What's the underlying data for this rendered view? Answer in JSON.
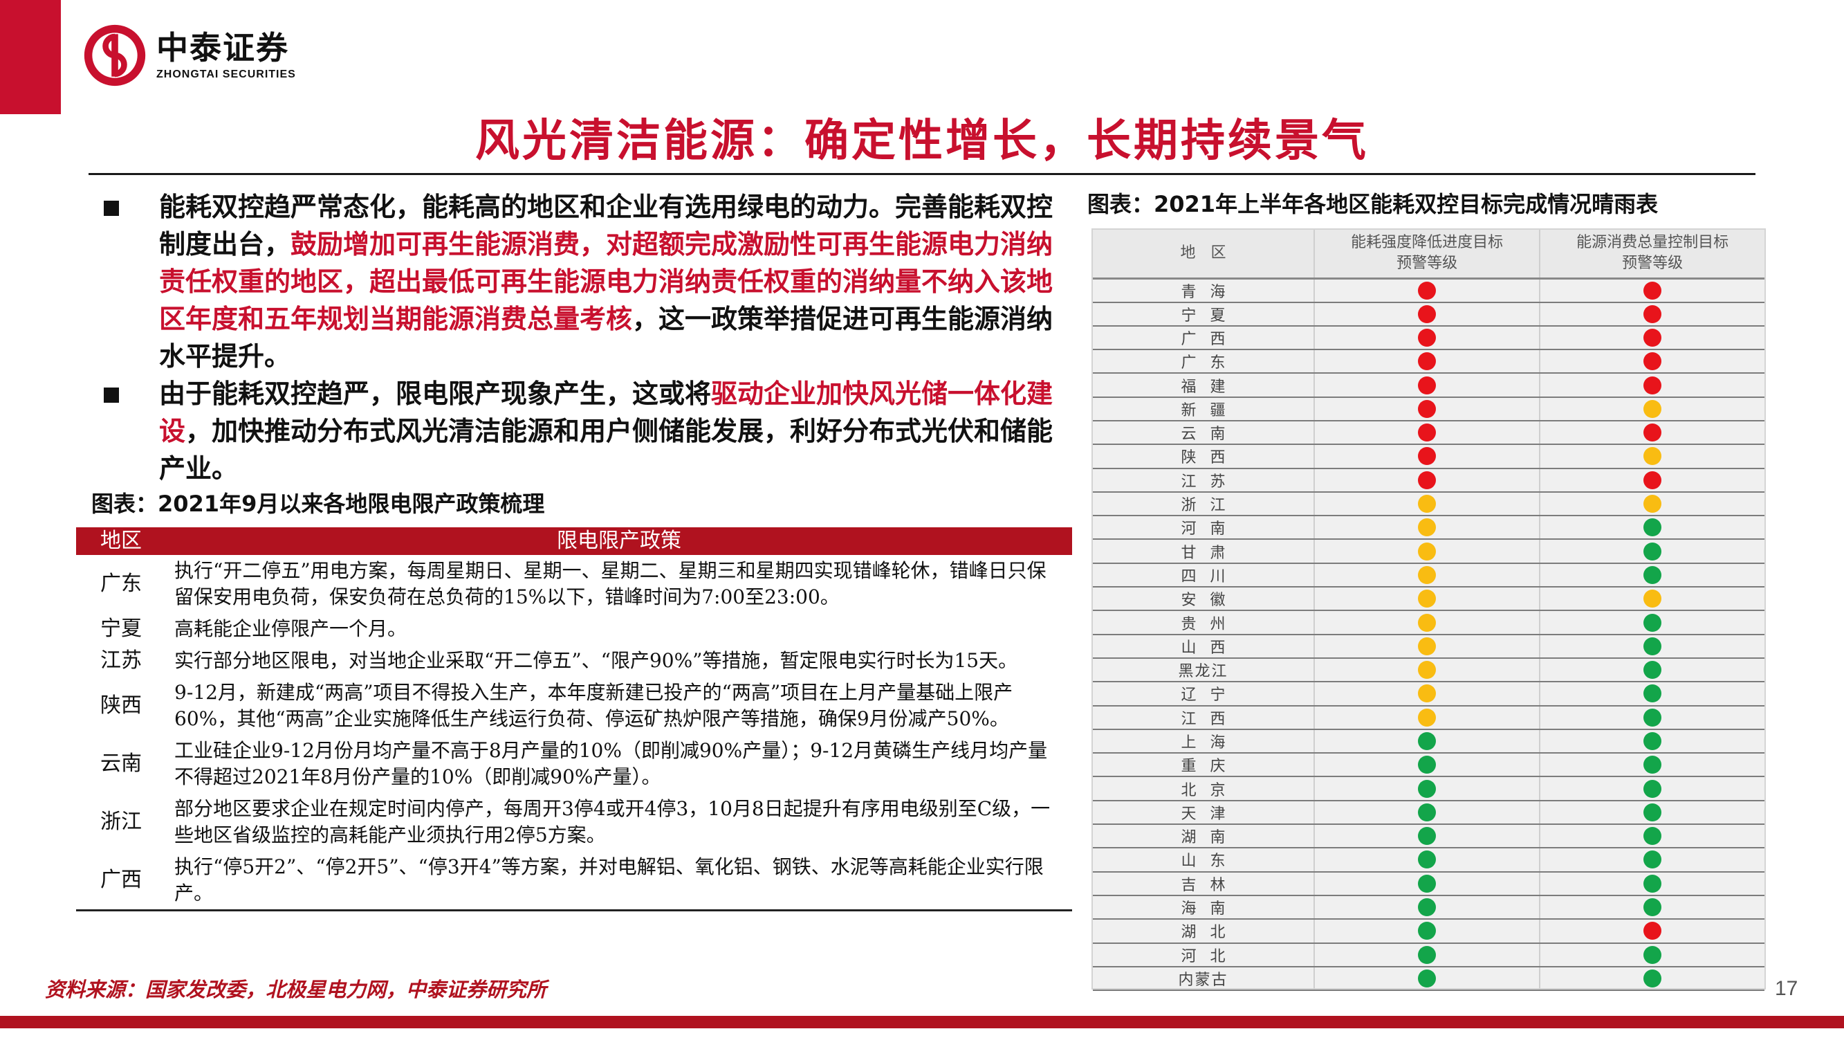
{
  "header": {
    "logo_cn": "中泰证券",
    "logo_en": "ZHONGTAI SECURITIES",
    "brand_color": "#c8102e"
  },
  "title": "风光清洁能源：确定性增长，长期持续景气",
  "bullets": [
    {
      "segments": [
        {
          "text": "能耗双控趋严常态化，能耗高的地区和企业有选用绿电的动力。完善能耗双控制度出台，",
          "highlight": false
        },
        {
          "text": "鼓励增加可再生能源消费，对超额完成激励性可再生能源电力消纳责任权重的地区，超出最低可再生能源电力消纳责任权重的消纳量不纳入该地区年度和五年规划当期能源消费总量考核",
          "highlight": true
        },
        {
          "text": "，这一政策举措促进可再生能源消纳水平提升。",
          "highlight": false
        }
      ]
    },
    {
      "segments": [
        {
          "text": "由于能耗双控趋严，限电限产现象产生，这或将",
          "highlight": false
        },
        {
          "text": "驱动企业加快风光储一体化建设",
          "highlight": true
        },
        {
          "text": "，加快推动分布式风光清洁能源和用户侧储能发展，利好分布式光伏和储能产业。",
          "highlight": false
        }
      ]
    }
  ],
  "policy_table": {
    "title": "图表：2021年9月以来各地限电限产政策梳理",
    "headers": [
      "地区",
      "限电限产政策"
    ],
    "rows": [
      {
        "region": "广东",
        "policy": "执行“开二停五”用电方案，每周星期日、星期一、星期二、星期三和星期四实现错峰轮休，错峰日只保留保安用电负荷，保安负荷在总负荷的15%以下，错峰时间为7:00至23:00。"
      },
      {
        "region": "宁夏",
        "policy": "高耗能企业停限产一个月。"
      },
      {
        "region": "江苏",
        "policy": "实行部分地区限电，对当地企业采取“开二停五”、“限产90%”等措施，暂定限电实行时长为15天。"
      },
      {
        "region": "陕西",
        "policy": "9-12月，新建成“两高”项目不得投入生产，本年度新建已投产的“两高”项目在上月产量基础上限产60%，其他“两高”企业实施降低生产线运行负荷、停运矿热炉限产等措施，确保9月份减产50%。"
      },
      {
        "region": "云南",
        "policy": "工业硅企业9-12月份月均产量不高于8月产量的10%（即削减90%产量）；9-12月黄磷生产线月均产量不得超过2021年8月份产量的10%（即削减90%产量）。"
      },
      {
        "region": "浙江",
        "policy": "部分地区要求企业在规定时间内停产，每周开3停4或开4停3，10月8日起提升有序用电级别至C级，一些地区省级监控的高耗能产业须执行用2停5方案。"
      },
      {
        "region": "广西",
        "policy": "执行“停5开2”、“停2开5”、“停3开4”等方案，并对电解铝、氧化铝、钢铁、水泥等高耗能企业实行限产。"
      }
    ]
  },
  "source": "资料来源：国家发改委，北极星电力网，中泰证券研究所",
  "page_number": "17",
  "status_chart": {
    "title": "图表：2021年上半年各地区能耗双控目标完成情况晴雨表",
    "headers": [
      "地　区",
      "能耗强度降低进度目标\n预警等级",
      "能源消费总量控制目标\n预警等级"
    ],
    "colors": {
      "red": "#e8141b",
      "yellow": "#f9bc12",
      "green": "#13a54a"
    },
    "rows": [
      {
        "region": "青海",
        "intensity": "red",
        "total": "red"
      },
      {
        "region": "宁夏",
        "intensity": "red",
        "total": "red"
      },
      {
        "region": "广西",
        "intensity": "red",
        "total": "red"
      },
      {
        "region": "广东",
        "intensity": "red",
        "total": "red"
      },
      {
        "region": "福建",
        "intensity": "red",
        "total": "red"
      },
      {
        "region": "新疆",
        "intensity": "red",
        "total": "yellow"
      },
      {
        "region": "云南",
        "intensity": "red",
        "total": "red"
      },
      {
        "region": "陕西",
        "intensity": "red",
        "total": "yellow"
      },
      {
        "region": "江苏",
        "intensity": "red",
        "total": "red"
      },
      {
        "region": "浙江",
        "intensity": "yellow",
        "total": "yellow"
      },
      {
        "region": "河南",
        "intensity": "yellow",
        "total": "green"
      },
      {
        "region": "甘肃",
        "intensity": "yellow",
        "total": "green"
      },
      {
        "region": "四川",
        "intensity": "yellow",
        "total": "green"
      },
      {
        "region": "安徽",
        "intensity": "yellow",
        "total": "yellow"
      },
      {
        "region": "贵州",
        "intensity": "yellow",
        "total": "green"
      },
      {
        "region": "山西",
        "intensity": "yellow",
        "total": "green"
      },
      {
        "region": "黑龙江",
        "intensity": "yellow",
        "total": "green"
      },
      {
        "region": "辽宁",
        "intensity": "yellow",
        "total": "green"
      },
      {
        "region": "江西",
        "intensity": "yellow",
        "total": "green"
      },
      {
        "region": "上海",
        "intensity": "green",
        "total": "green"
      },
      {
        "region": "重庆",
        "intensity": "green",
        "total": "green"
      },
      {
        "region": "北京",
        "intensity": "green",
        "total": "green"
      },
      {
        "region": "天津",
        "intensity": "green",
        "total": "green"
      },
      {
        "region": "湖南",
        "intensity": "green",
        "total": "green"
      },
      {
        "region": "山东",
        "intensity": "green",
        "total": "green"
      },
      {
        "region": "吉林",
        "intensity": "green",
        "total": "green"
      },
      {
        "region": "海南",
        "intensity": "green",
        "total": "green"
      },
      {
        "region": "湖北",
        "intensity": "green",
        "total": "red"
      },
      {
        "region": "河北",
        "intensity": "green",
        "total": "green"
      },
      {
        "region": "内蒙古",
        "intensity": "green",
        "total": "green"
      }
    ]
  }
}
